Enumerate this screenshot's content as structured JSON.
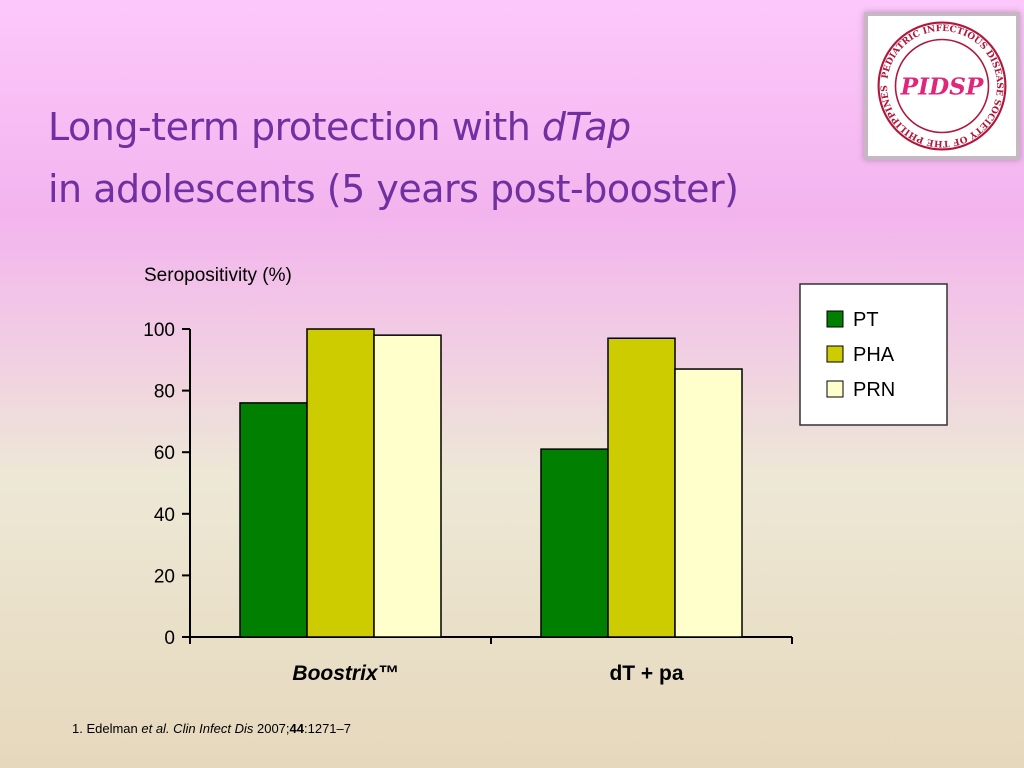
{
  "slide": {
    "title_part1": "Long-term protection with ",
    "title_part1_italic": "dTap",
    "title_part2": "in adolescents (5 years post-booster)"
  },
  "logo": {
    "icon": "pidsp-seal-logo",
    "ring_text": "PEDIATRIC INFECTIOUS DISEASE SOCIETY OF THE PHILIPPINES",
    "center_text": "PIDSP",
    "colors": {
      "ring": "#b0173a",
      "center": "#e0257a"
    }
  },
  "footnote": {
    "prefix": "1. Edelman ",
    "etal": "et al.",
    "journal": " Clin Infect Dis",
    "year": " 2007;",
    "volume": "44",
    "pages": ":1271–7"
  },
  "chart_data": {
    "type": "bar",
    "ylabel": "Seropositivity (%)",
    "ylim": [
      0,
      100
    ],
    "yticks": [
      "0",
      "20",
      "40",
      "60",
      "80",
      "100"
    ],
    "categories": [
      "Boostrix™",
      "dT + pa"
    ],
    "category_italic": [
      true,
      false
    ],
    "series": [
      {
        "name": "PT",
        "values": [
          76,
          61
        ],
        "color": "#007f00"
      },
      {
        "name": "PHA",
        "values": [
          100,
          97
        ],
        "color": "#cccc00"
      },
      {
        "name": "PRN",
        "values": [
          98,
          87
        ],
        "color": "#ffffcc"
      }
    ],
    "legend_position": "top-right",
    "grid": false
  }
}
